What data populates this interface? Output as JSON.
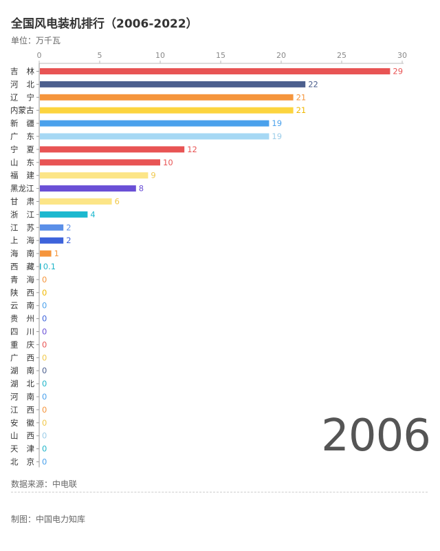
{
  "title": "全国风电装机排行（2006-2022）",
  "unit": "单位：万千瓦",
  "year": "2006",
  "source": "数据来源：中电联",
  "maker": "制图：中国电力知库",
  "chart_data": {
    "type": "bar",
    "orientation": "horizontal",
    "title": "全国风电装机排行（2006-2022）",
    "xlim": [
      0,
      30
    ],
    "ticks": [
      0,
      5,
      10,
      15,
      20,
      25,
      30
    ],
    "grid": false,
    "categories": [
      "吉 林",
      "河 北",
      "辽 宁",
      "内蒙古",
      "新 疆",
      "广 东",
      "宁 夏",
      "山 东",
      "福 建",
      "黑龙江",
      "甘 肃",
      "浙 江",
      "江 苏",
      "上 海",
      "海 南",
      "西 藏",
      "青 海",
      "陕 西",
      "云 南",
      "贵 州",
      "四 川",
      "重 庆",
      "广 西",
      "湖 南",
      "湖 北",
      "河 南",
      "江 西",
      "安 徽",
      "山 西",
      "天 津",
      "北 京"
    ],
    "values": [
      29,
      22,
      21,
      21,
      19,
      19,
      12,
      10,
      9,
      8,
      6,
      4,
      2,
      2,
      1,
      0.1,
      0,
      0,
      0,
      0,
      0,
      0,
      0,
      0,
      0,
      0,
      0,
      0,
      0,
      0,
      0
    ],
    "value_labels": [
      "29",
      "22",
      "21",
      "21",
      "19",
      "19",
      "12",
      "10",
      "9",
      "8",
      "6",
      "4",
      "2",
      "2",
      "1",
      "0.1",
      "0",
      "0",
      "0",
      "0",
      "0",
      "0",
      "0",
      "0",
      "0",
      "0",
      "0",
      "0",
      "0",
      "0",
      "0"
    ],
    "colors": [
      "#e85454",
      "#4c5f8e",
      "#f5953c",
      "#fcd43f",
      "#4aa1ec",
      "#a6d8f4",
      "#e85454",
      "#e85454",
      "#fce587",
      "#6a4fd6",
      "#fce587",
      "#1cb8cf",
      "#5a8fe8",
      "#3d63db",
      "#f5953c",
      "#20b5c9",
      "#f5953c",
      "#fcd43f",
      "#4aa1ec",
      "#3d63db",
      "#6a4fd6",
      "#e85454",
      "#fcd43f",
      "#4c5f8e",
      "#20b5c9",
      "#4aa1ec",
      "#f5953c",
      "#fcd43f",
      "#a6d8f4",
      "#20b5c9",
      "#4aa1ec"
    ],
    "label_colors": [
      "#e85454",
      "#4c5f8e",
      "#f5953c",
      "#f0b800",
      "#4aa1ec",
      "#9ccde9",
      "#e85454",
      "#e85454",
      "#f0c84a",
      "#6a4fd6",
      "#f0c84a",
      "#1cb8cf",
      "#5a8fe8",
      "#3d63db",
      "#f5953c",
      "#20b5c9",
      "#f5953c",
      "#f0b800",
      "#4aa1ec",
      "#3d63db",
      "#6a4fd6",
      "#e85454",
      "#f0c84a",
      "#4c5f8e",
      "#20b5c9",
      "#4aa1ec",
      "#f5953c",
      "#f0c84a",
      "#9ccde9",
      "#20b5c9",
      "#4aa1ec"
    ]
  }
}
